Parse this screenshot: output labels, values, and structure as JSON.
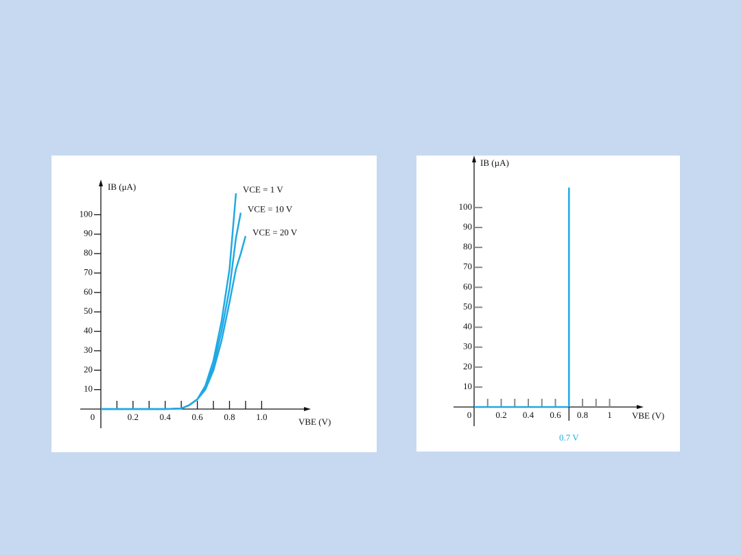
{
  "chart_data": [
    {
      "type": "line",
      "x_label": "VBE (V)",
      "y_label": "IB (μA)",
      "x": [
        0,
        0.2,
        0.4,
        0.5,
        0.55,
        0.6,
        0.65,
        0.7,
        0.75,
        0.8,
        0.84,
        0.87,
        0.9
      ],
      "series": [
        {
          "name": "VCE = 1 V",
          "color": "#1fa9e3",
          "values": [
            0,
            0,
            0,
            0.3,
            2,
            5,
            12,
            25,
            45,
            72,
            111,
            null,
            null
          ]
        },
        {
          "name": "VCE = 10 V",
          "color": "#1fa9e3",
          "values": [
            0,
            0,
            0,
            0.3,
            2,
            5,
            11,
            22,
            40,
            62,
            88,
            101,
            null
          ]
        },
        {
          "name": "VCE = 20 V",
          "color": "#1fa9e3",
          "values": [
            0,
            0,
            0,
            0.3,
            2,
            5,
            10,
            20,
            35,
            55,
            72,
            80,
            89
          ]
        }
      ],
      "xlim": [
        0,
        1.28
      ],
      "ylim": [
        0,
        116
      ],
      "xticks": [
        0,
        0.2,
        0.4,
        0.6,
        0.8,
        {
          "value": 1,
          "label": "1.0"
        }
      ],
      "xticks_minor": [
        0.1,
        0.2,
        0.3,
        0.4,
        0.5,
        0.6,
        0.7,
        0.8,
        0.9,
        1
      ],
      "yticks": [
        10,
        20,
        30,
        40,
        50,
        60,
        70,
        80,
        90,
        100
      ]
    },
    {
      "type": "line",
      "x_label": "VBE (V)",
      "y_label": "IB (µA)",
      "x": [
        0,
        0.7,
        0.7
      ],
      "series": [
        {
          "color": "#1fa9e3",
          "values": [
            0,
            0,
            110
          ]
        }
      ],
      "xlim": [
        0,
        1.22
      ],
      "ylim": [
        0,
        124
      ],
      "xticks": [
        0,
        0.2,
        0.4,
        0.6,
        0.8,
        1
      ],
      "xticks_minor": [
        0.1,
        0.2,
        0.3,
        0.4,
        0.5,
        0.6,
        0.8,
        0.9,
        1
      ],
      "yticks": [
        10,
        20,
        30,
        40,
        50,
        60,
        70,
        80,
        90,
        100
      ],
      "annotations": [
        {
          "text": "0.7 V",
          "x": 0.7,
          "color": "#1fa9e3"
        }
      ]
    }
  ]
}
